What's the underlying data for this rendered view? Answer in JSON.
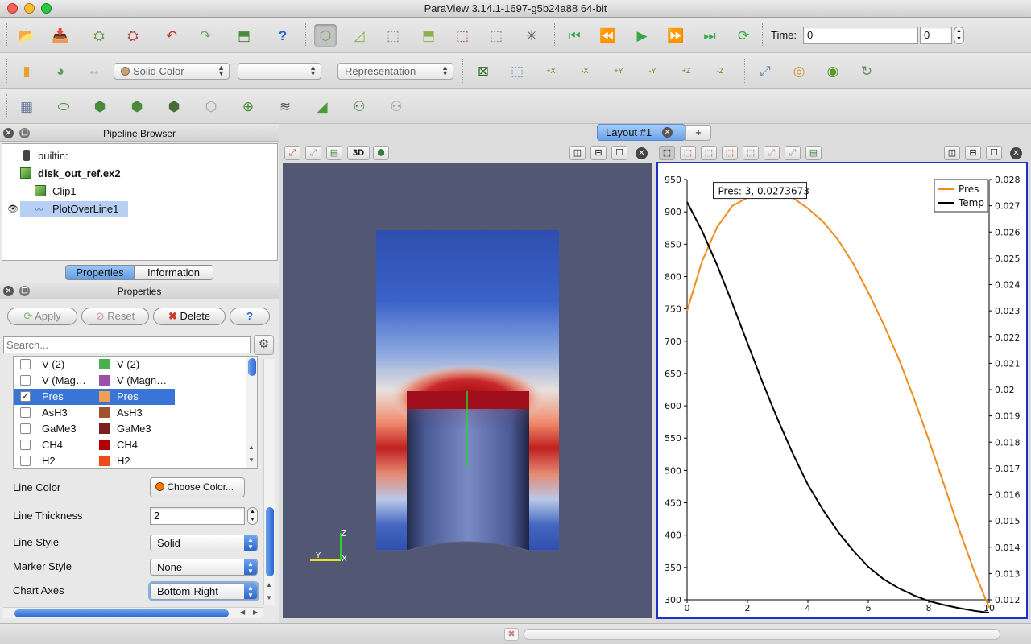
{
  "window": {
    "title": "ParaView 3.14.1-1697-g5b24a88 64-bit"
  },
  "toolbar1": {
    "time_label": "Time:",
    "time_value": "0",
    "timestep_value": "0"
  },
  "toolbar2": {
    "color_by": "Solid Color",
    "component": "",
    "representation": "Representation",
    "camera_labels": [
      "+X",
      "-X",
      "+Y",
      "-Y",
      "+Z",
      "-Z"
    ]
  },
  "pipeline": {
    "title": "Pipeline Browser",
    "items": [
      {
        "label": "builtin:"
      },
      {
        "label": "disk_out_ref.ex2"
      },
      {
        "label": "Clip1"
      },
      {
        "label": "PlotOverLine1"
      }
    ]
  },
  "tabs": {
    "properties": "Properties",
    "information": "Information"
  },
  "properties": {
    "title": "Properties",
    "apply": "Apply",
    "reset": "Reset",
    "delete": "Delete",
    "help": "?",
    "search_placeholder": "Search...",
    "variables": [
      {
        "name": "V (2)",
        "legend": "V (2)",
        "checked": false,
        "color": "#4caf50"
      },
      {
        "name": "V (Mag…",
        "legend": "V (Magn…",
        "checked": false,
        "color": "#9c4fa8"
      },
      {
        "name": "Pres",
        "legend": "Pres",
        "checked": true,
        "color": "#f0a050"
      },
      {
        "name": "AsH3",
        "legend": "AsH3",
        "checked": false,
        "color": "#a0522d"
      },
      {
        "name": "GaMe3",
        "legend": "GaMe3",
        "checked": false,
        "color": "#7a1f1f"
      },
      {
        "name": "CH4",
        "legend": "CH4",
        "checked": false,
        "color": "#b00000"
      },
      {
        "name": "H2",
        "legend": "H2",
        "checked": false,
        "color": "#f04a1a"
      }
    ],
    "line_color_label": "Line Color",
    "choose_color": "Choose Color...",
    "line_thickness_label": "Line Thickness",
    "line_thickness": "2",
    "line_style_label": "Line Style",
    "line_style": "Solid",
    "marker_style_label": "Marker Style",
    "marker_style": "None",
    "chart_axes_label": "Chart Axes",
    "chart_axes": "Bottom-Right"
  },
  "layout": {
    "tab_label": "Layout #1",
    "add_tab": "+"
  },
  "view3d": {
    "btn_3d": "3D",
    "axis_labels": {
      "z": "Z",
      "y": "Y",
      "x": "X"
    }
  },
  "colors": {
    "pres": "#f08c1e",
    "temp": "#000000",
    "view_bg": "#525874",
    "selection": "#3875d7",
    "chart_frame": "#1f2fc8"
  },
  "chart_data": {
    "type": "line",
    "tooltip": "Pres: 3, 0.0273673",
    "legend_position": "top-right",
    "xlim": [
      0,
      10
    ],
    "ylim_left": [
      300,
      950
    ],
    "ylim_right": [
      0.012,
      0.028
    ],
    "x_ticks": [
      "0",
      "2",
      "4",
      "6",
      "8",
      "10"
    ],
    "y_left_ticks": [
      "300",
      "350",
      "400",
      "450",
      "500",
      "550",
      "600",
      "650",
      "700",
      "750",
      "800",
      "850",
      "900",
      "950"
    ],
    "y_right_ticks": [
      "0.012",
      "0.013",
      "0.014",
      "0.015",
      "0.016",
      "0.017",
      "0.018",
      "0.019",
      "0.02",
      "0.021",
      "0.022",
      "0.023",
      "0.024",
      "0.025",
      "0.026",
      "0.027",
      "0.028"
    ],
    "series": [
      {
        "name": "Pres",
        "axis": "right",
        "x": [
          0,
          0.5,
          1,
          1.5,
          2,
          2.5,
          3,
          3.5,
          4,
          4.5,
          5,
          5.5,
          6,
          6.5,
          7,
          7.5,
          8,
          8.5,
          9,
          9.5,
          10
        ],
        "y": [
          0.023,
          0.0249,
          0.0262,
          0.027,
          0.0273,
          0.02735,
          0.0274,
          0.0273,
          0.0269,
          0.0264,
          0.0257,
          0.0248,
          0.0237,
          0.0225,
          0.0212,
          0.0197,
          0.0181,
          0.0164,
          0.0147,
          0.0131,
          0.0117
        ]
      },
      {
        "name": "Temp",
        "axis": "left",
        "x": [
          0,
          0.5,
          1,
          1.5,
          2,
          2.5,
          3,
          3.5,
          4,
          4.5,
          5,
          5.5,
          6,
          6.5,
          7,
          7.5,
          8,
          8.5,
          9,
          9.5,
          10
        ],
        "y": [
          915,
          870,
          817,
          758,
          697,
          636,
          579,
          526,
          478,
          439,
          405,
          376,
          351,
          332,
          318,
          307,
          298,
          292,
          287,
          283,
          280
        ]
      }
    ]
  }
}
